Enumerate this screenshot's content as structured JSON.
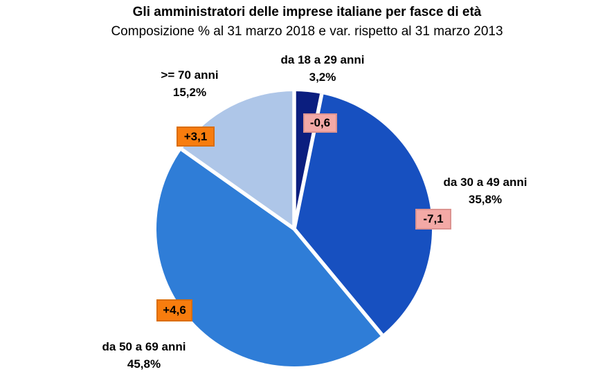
{
  "title": "Gli amministratori delle imprese italiane per fasce di età",
  "subtitle": "Composizione % al 31 marzo 2018 e var. rispetto al 31 marzo 2013",
  "chart_data": {
    "type": "pie",
    "title": "Gli amministratori delle imprese italiane per fasce di età",
    "subtitle": "Composizione % al 31 marzo 2018 e var. rispetto al 31 marzo 2013",
    "start_angle_deg": 0,
    "direction": "clockwise",
    "separator_color": "#ffffff",
    "legend_position": "around-labels",
    "slices": [
      {
        "label": "da 18 a 29 anni",
        "value_pct": 3.2,
        "value_label": "3,2%",
        "change": -0.6,
        "change_label": "-0,6",
        "color": "#0B1E7F",
        "badge_fill": "#F3A9A6",
        "badge_border": "#DC9390"
      },
      {
        "label": "da 30 a 49 anni",
        "value_pct": 35.8,
        "value_label": "35,8%",
        "change": -7.1,
        "change_label": "-7,1",
        "color": "#1750C0",
        "badge_fill": "#F3A9A6",
        "badge_border": "#DC9390"
      },
      {
        "label": "da 50 a 69 anni",
        "value_pct": 45.8,
        "value_label": "45,8%",
        "change": 4.6,
        "change_label": "+4,6",
        "color": "#2F7DD7",
        "badge_fill": "#F87D0E",
        "badge_border": "#DA6D04"
      },
      {
        "label": ">= 70 anni",
        "value_pct": 15.2,
        "value_label": "15,2%",
        "change": 3.1,
        "change_label": "+3,1",
        "color": "#AEC6E8",
        "badge_fill": "#F87D0E",
        "badge_border": "#DA6D04"
      }
    ]
  }
}
